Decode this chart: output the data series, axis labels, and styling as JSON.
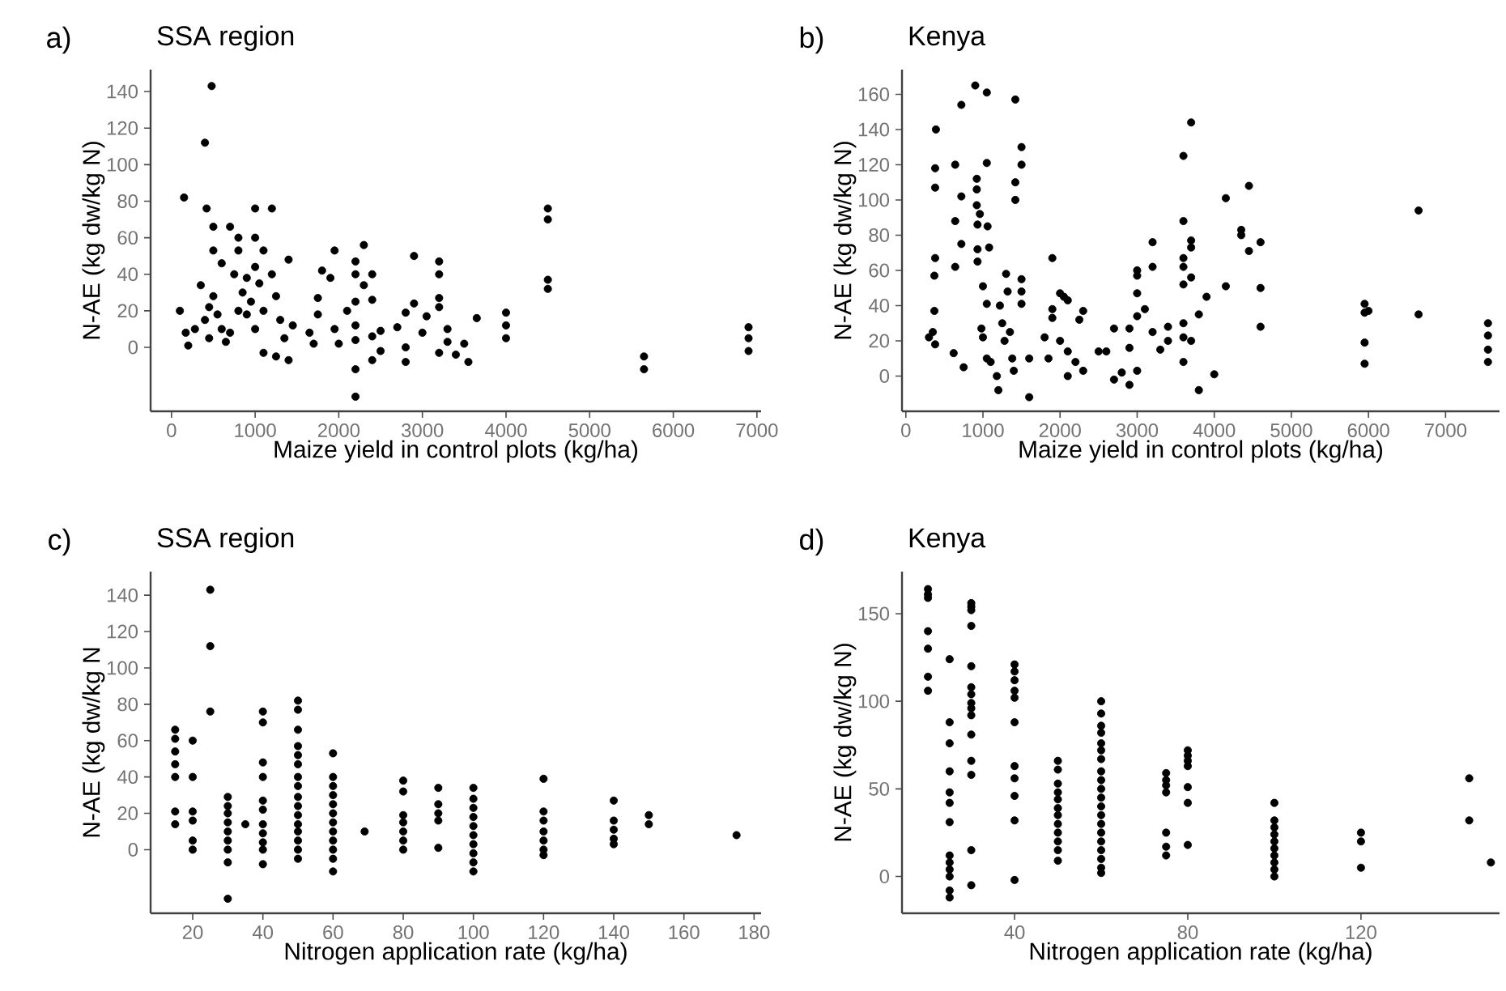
{
  "chart_data": [
    {
      "type": "scatter",
      "title": "SSA region",
      "annotations": [
        "a)"
      ],
      "xlabel": "Maize yield in control plots (kg/ha)",
      "ylabel": "N-AE (kg dw/kg N)",
      "color": "#000000",
      "marker": "circle",
      "xlim": [
        -250,
        7050
      ],
      "ylim": [
        -35,
        152
      ],
      "xticks": [
        0,
        1000,
        2000,
        3000,
        4000,
        5000,
        6000,
        7000
      ],
      "yticks": [
        0,
        20,
        40,
        60,
        80,
        100,
        120,
        140
      ],
      "x": [
        100,
        150,
        170,
        200,
        280,
        350,
        400,
        420,
        480,
        500,
        500,
        600,
        400,
        450,
        450,
        500,
        550,
        600,
        650,
        700,
        750,
        800,
        800,
        850,
        900,
        950,
        1000,
        1000,
        1000,
        1050,
        1100,
        1100,
        1200,
        1200,
        1250,
        1300,
        1350,
        1400,
        1400,
        1450,
        700,
        800,
        900,
        1000,
        1100,
        1250,
        1650,
        1700,
        1750,
        1750,
        1800,
        1900,
        1950,
        1950,
        2000,
        2100,
        2200,
        2200,
        2200,
        2200,
        2200,
        2200,
        2200,
        2300,
        2300,
        2400,
        2400,
        2400,
        2400,
        2500,
        2500,
        2700,
        2800,
        2800,
        2800,
        2900,
        2900,
        3000,
        3050,
        3200,
        3200,
        3200,
        3200,
        3200,
        3300,
        3300,
        3400,
        3500,
        3550,
        3650,
        4000,
        4000,
        4000,
        4500,
        4500,
        4500,
        4500,
        5650,
        5650,
        6900,
        6900,
        6900
      ],
      "values": [
        20,
        82,
        8,
        1,
        10,
        34,
        112,
        76,
        143,
        66,
        53,
        46,
        15,
        22,
        5,
        28,
        18,
        10,
        3,
        66,
        40,
        60,
        53,
        30,
        38,
        25,
        76,
        60,
        44,
        35,
        53,
        20,
        76,
        40,
        28,
        15,
        5,
        48,
        -7,
        12,
        8,
        20,
        18,
        10,
        -3,
        -5,
        8,
        2,
        27,
        18,
        42,
        38,
        53,
        10,
        2,
        20,
        47,
        40,
        25,
        12,
        4,
        -12,
        -27,
        56,
        34,
        40,
        26,
        6,
        -7,
        9,
        -2,
        11,
        19,
        0,
        -8,
        50,
        24,
        8,
        17,
        47,
        40,
        27,
        22,
        -3,
        10,
        3,
        -4,
        2,
        -8,
        16,
        19,
        12,
        5,
        76,
        70,
        37,
        32,
        -5,
        -12,
        11,
        5,
        -2
      ]
    },
    {
      "type": "scatter",
      "title": "Kenya",
      "annotations": [
        "b)"
      ],
      "xlabel": "Maize yield in control plots (kg/ha)",
      "ylabel": "N-AE (kg dw/kg N)",
      "color": "#000000",
      "marker": "circle",
      "xlim": [
        -50,
        7700
      ],
      "ylim": [
        -20,
        174
      ],
      "xticks": [
        0,
        1000,
        2000,
        3000,
        4000,
        5000,
        6000,
        7000
      ],
      "yticks": [
        0,
        20,
        40,
        60,
        80,
        100,
        120,
        140,
        160
      ],
      "x": [
        390,
        380,
        380,
        380,
        370,
        370,
        350,
        300,
        380,
        640,
        640,
        640,
        620,
        720,
        720,
        720,
        750,
        900,
        920,
        920,
        920,
        930,
        930,
        930,
        960,
        980,
        1000,
        1000,
        1050,
        1050,
        1060,
        1080,
        1050,
        1050,
        1100,
        1180,
        1200,
        1220,
        1250,
        1280,
        1300,
        1320,
        1350,
        1380,
        1400,
        1420,
        1420,
        1420,
        1500,
        1500,
        1500,
        1500,
        1500,
        1600,
        1600,
        1800,
        1850,
        1900,
        1900,
        1900,
        2000,
        2050,
        2100,
        2000,
        2100,
        2100,
        2200,
        2300,
        2250,
        2300,
        2500,
        2600,
        2700,
        2700,
        2800,
        2900,
        2900,
        2900,
        3000,
        3000,
        3000,
        3000,
        3000,
        3100,
        3200,
        3200,
        3200,
        3300,
        3400,
        3400,
        3600,
        3600,
        3600,
        3600,
        3600,
        3600,
        3600,
        3600,
        3700,
        3700,
        3700,
        3700,
        3700,
        3800,
        3800,
        3900,
        4000,
        4150,
        4150,
        4350,
        4350,
        4450,
        4450,
        4600,
        4600,
        4600,
        5950,
        5950,
        5950,
        5950,
        6000,
        6650,
        6650,
        7550,
        7550,
        7550,
        7550
      ],
      "values": [
        140,
        118,
        107,
        67,
        57,
        37,
        25,
        22,
        18,
        120,
        88,
        62,
        13,
        154,
        102,
        75,
        5,
        165,
        112,
        106,
        97,
        86,
        72,
        65,
        92,
        27,
        22,
        51,
        161,
        121,
        85,
        73,
        41,
        10,
        8,
        0,
        -8,
        40,
        30,
        20,
        58,
        48,
        25,
        10,
        3,
        157,
        110,
        100,
        130,
        120,
        55,
        48,
        41,
        10,
        -12,
        22,
        10,
        67,
        38,
        33,
        47,
        45,
        43,
        20,
        14,
        0,
        8,
        3,
        32,
        37,
        14,
        14,
        27,
        -2,
        2,
        27,
        16,
        -5,
        60,
        57,
        47,
        34,
        3,
        38,
        76,
        62,
        25,
        15,
        28,
        20,
        125,
        88,
        67,
        62,
        52,
        30,
        22,
        8,
        144,
        77,
        73,
        56,
        20,
        -8,
        35,
        45,
        1,
        101,
        51,
        83,
        80,
        71,
        108,
        76,
        50,
        28,
        41,
        36,
        19,
        7,
        37,
        94,
        35,
        30,
        23,
        15,
        8
      ]
    },
    {
      "type": "scatter",
      "title": "SSA region",
      "annotations": [
        "c)"
      ],
      "xlabel": "Nitrogen application rate (kg/ha)",
      "ylabel": "N-AE (kg dw/kg N",
      "color": "#000000",
      "marker": "circle",
      "xlim": [
        8,
        182
      ],
      "ylim": [
        -35,
        153
      ],
      "xticks": [
        20,
        40,
        60,
        80,
        100,
        120,
        140,
        160,
        180
      ],
      "yticks": [
        0,
        20,
        40,
        60,
        80,
        100,
        120,
        140
      ],
      "x": [
        15,
        15,
        15,
        15,
        15,
        15,
        15,
        20,
        20,
        20,
        20,
        20,
        20,
        25,
        25,
        25,
        30,
        30,
        30,
        30,
        30,
        30,
        30,
        30,
        30,
        35,
        40,
        40,
        40,
        40,
        40,
        40,
        40,
        40,
        40,
        40,
        40,
        50,
        50,
        50,
        50,
        50,
        50,
        50,
        50,
        50,
        50,
        50,
        50,
        50,
        50,
        50,
        50,
        60,
        60,
        60,
        60,
        60,
        60,
        60,
        60,
        60,
        60,
        60,
        60,
        69,
        80,
        80,
        80,
        80,
        80,
        80,
        80,
        90,
        90,
        90,
        90,
        90,
        100,
        100,
        100,
        100,
        100,
        100,
        100,
        100,
        100,
        100,
        120,
        120,
        120,
        120,
        120,
        120,
        120,
        140,
        140,
        140,
        140,
        140,
        150,
        150,
        175
      ],
      "values": [
        66,
        61,
        54,
        47,
        40,
        21,
        14,
        60,
        40,
        21,
        16,
        5,
        0,
        143,
        112,
        76,
        29,
        24,
        20,
        15,
        10,
        5,
        0,
        -7,
        -27,
        14,
        76,
        70,
        48,
        40,
        27,
        22,
        14,
        9,
        4,
        0,
        -8,
        82,
        77,
        66,
        57,
        52,
        47,
        40,
        35,
        29,
        24,
        19,
        14,
        10,
        5,
        0,
        -5,
        53,
        40,
        35,
        30,
        25,
        20,
        15,
        10,
        5,
        0,
        -5,
        -12,
        10,
        38,
        32,
        19,
        15,
        10,
        5,
        0,
        34,
        25,
        20,
        16,
        1,
        34,
        28,
        23,
        18,
        13,
        8,
        3,
        -2,
        -7,
        -12,
        39,
        21,
        16,
        10,
        5,
        0,
        -3,
        27,
        16,
        11,
        6,
        3,
        19,
        14,
        8
      ]
    },
    {
      "type": "scatter",
      "title": "Kenya",
      "annotations": [
        "d)"
      ],
      "xlabel": "Nitrogen application rate (kg/ha)",
      "ylabel": "N-AE (kg dw/kg N)",
      "color": "#000000",
      "marker": "circle",
      "xlim": [
        14,
        152
      ],
      "ylim": [
        -21,
        174
      ],
      "xticks": [
        40,
        80,
        120
      ],
      "yticks": [
        0,
        50,
        100,
        150
      ],
      "x": [
        20,
        20,
        20,
        20,
        20,
        20,
        20,
        25,
        25,
        25,
        25,
        25,
        25,
        25,
        25,
        25,
        25,
        25,
        25,
        25,
        30,
        30,
        30,
        30,
        30,
        30,
        30,
        30,
        30,
        30,
        30,
        30,
        30,
        30,
        30,
        40,
        40,
        40,
        40,
        40,
        40,
        40,
        40,
        40,
        40,
        40,
        50,
        50,
        50,
        50,
        50,
        50,
        50,
        50,
        50,
        50,
        50,
        50,
        60,
        60,
        60,
        60,
        60,
        60,
        60,
        60,
        60,
        60,
        60,
        60,
        60,
        60,
        60,
        60,
        60,
        60,
        60,
        60,
        75,
        75,
        75,
        75,
        75,
        75,
        75,
        80,
        80,
        80,
        80,
        80,
        80,
        80,
        100,
        100,
        100,
        100,
        100,
        100,
        100,
        100,
        100,
        100,
        120,
        120,
        120,
        145,
        145,
        150
      ],
      "values": [
        164,
        161,
        159,
        140,
        130,
        114,
        106,
        124,
        88,
        76,
        60,
        48,
        42,
        31,
        12,
        8,
        4,
        0,
        -8,
        -12,
        156,
        154,
        152,
        143,
        120,
        108,
        104,
        99,
        96,
        92,
        81,
        66,
        58,
        15,
        -5,
        121,
        117,
        112,
        106,
        102,
        88,
        63,
        56,
        46,
        32,
        -2,
        66,
        61,
        53,
        48,
        44,
        39,
        35,
        30,
        25,
        20,
        15,
        9,
        100,
        93,
        86,
        82,
        76,
        72,
        67,
        60,
        55,
        50,
        45,
        40,
        35,
        30,
        25,
        20,
        15,
        10,
        5,
        2,
        59,
        55,
        52,
        48,
        25,
        17,
        12,
        72,
        69,
        66,
        63,
        51,
        42,
        18,
        42,
        32,
        28,
        24,
        20,
        16,
        12,
        8,
        4,
        0,
        25,
        20,
        5,
        56,
        32,
        8
      ]
    }
  ]
}
